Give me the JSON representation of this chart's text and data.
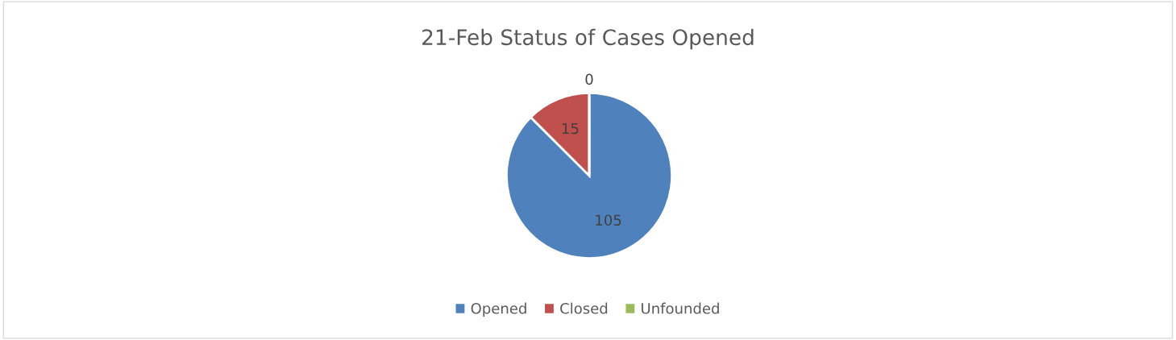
{
  "chart_data": {
    "type": "pie",
    "title": "21-Feb Status of Cases Opened",
    "categories": [
      "Opened",
      "Closed",
      "Unfounded"
    ],
    "values": [
      105,
      15,
      0
    ],
    "colors": [
      "#4f81bd",
      "#c0504d",
      "#9bbb59"
    ],
    "value_labels": [
      "105",
      "15",
      "0"
    ],
    "legend": "bottom"
  }
}
